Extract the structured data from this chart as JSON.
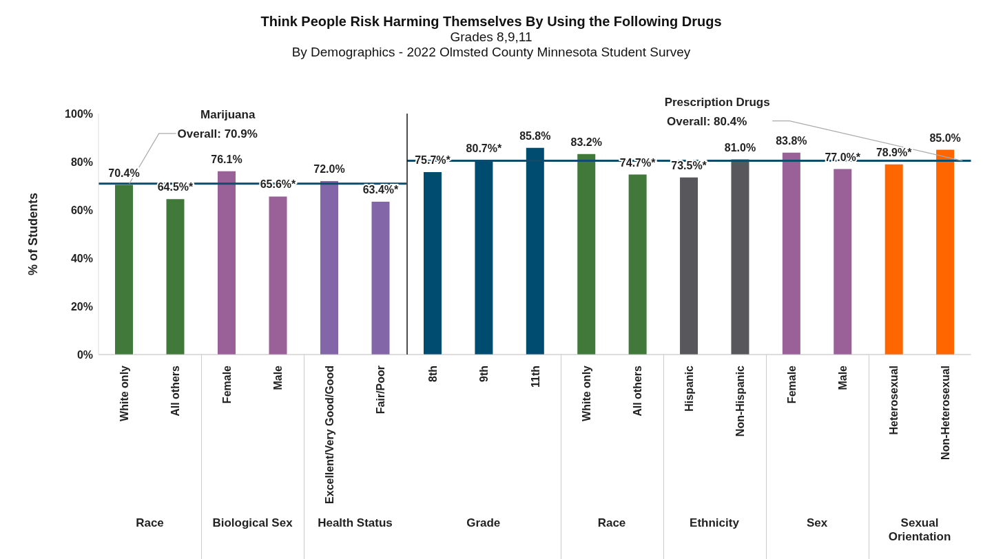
{
  "chart_data": [
    {
      "type": "bar",
      "title": "Think People Risk Harming Themselves By Using the Following Drugs",
      "subtitle": "Grades 8,9,11\nBy Demographics - 2022 Olmsted County Minnesota Student Survey",
      "ylabel": "% of Students",
      "categories": [
        "White only",
        "All others",
        "Female",
        "Male",
        "Excellent/Very Good/Good",
        "Fair/Poor"
      ],
      "values": [
        70.4,
        64.5,
        76.1,
        65.6,
        72.0,
        63.4
      ],
      "colors": [
        "#41793a",
        "#41793a",
        "#9a6098",
        "#9a6098",
        "#8366a8",
        "#8366a8"
      ],
      "value_labels": [
        "70.4%",
        "64.5%*",
        "76.1%",
        "65.6%*",
        "72.0%",
        "63.4%*"
      ],
      "annotations": [
        "Race",
        "Biological Sex",
        "Health Status"
      ],
      "ref_lines": [
        {
          "axis": "y",
          "value": 70.9,
          "label": "Marijuana\nOverall: 70.9%",
          "color": "#0f4c6b"
        }
      ],
      "ylim": [
        0,
        100
      ],
      "yticks": [
        {
          "value": 0,
          "label": "0%"
        },
        {
          "value": 20,
          "label": "20%"
        },
        {
          "value": 40,
          "label": "40%"
        },
        {
          "value": 60,
          "label": "60%"
        },
        {
          "value": 80,
          "label": "80%"
        },
        {
          "value": 100,
          "label": "100%"
        }
      ],
      "grid": false,
      "legend": false
    },
    {
      "type": "bar",
      "categories": [
        "8th",
        "9th",
        "11th",
        "White only",
        "All others",
        "Hispanic",
        "Non-Hispanic",
        "Female",
        "Male",
        "Heterosexual",
        "Non-Heterosexual"
      ],
      "values": [
        75.7,
        80.7,
        85.8,
        83.2,
        74.7,
        73.5,
        81.0,
        83.8,
        77.0,
        78.9,
        85.0
      ],
      "colors": [
        "#004c70",
        "#004c70",
        "#004c70",
        "#41793a",
        "#41793a",
        "#58585c",
        "#58585c",
        "#9a6098",
        "#9a6098",
        "#ff6600",
        "#ff6600"
      ],
      "value_labels": [
        "75.7%*",
        "80.7%*",
        "85.8%",
        "83.2%",
        "74.7%*",
        "73.5%*",
        "81.0%",
        "83.8%",
        "77.0%*",
        "78.9%*",
        "85.0%"
      ],
      "annotations": [
        "Grade",
        "Race",
        "Ethnicity",
        "Sex",
        "Sexual Orientation"
      ],
      "ref_lines": [
        {
          "axis": "y",
          "value": 80.4,
          "label": "Prescription Drugs\nOverall: 80.4%",
          "color": "#0f4c6b"
        }
      ],
      "ylim": [
        0,
        100
      ],
      "tick_labels": "x",
      "grid": false,
      "legend": false
    }
  ]
}
